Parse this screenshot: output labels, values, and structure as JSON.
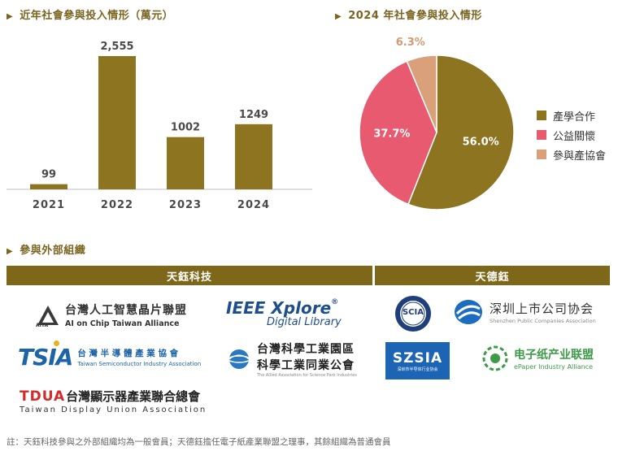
{
  "titles": {
    "bar": "近年社會參與投入情形（萬元）",
    "pie": "2024 年社會參與投入情形",
    "org": "參與外部組織"
  },
  "chart_data": [
    {
      "type": "bar",
      "title": "近年社會參與投入情形（萬元）",
      "categories": [
        "2021",
        "2022",
        "2023",
        "2024"
      ],
      "values": [
        99,
        2555,
        1002,
        1249
      ],
      "value_labels": [
        "99",
        "2,555",
        "1002",
        "1249"
      ],
      "ylim": [
        0,
        2700
      ],
      "xlabel": "",
      "ylabel": "",
      "color": "#8c7420"
    },
    {
      "type": "pie",
      "title": "2024 年社會參與投入情形",
      "labels": [
        "產學合作",
        "公益關懷",
        "參與產協會"
      ],
      "values": [
        56.0,
        37.7,
        6.3
      ],
      "value_labels": [
        "56.0%",
        "37.7%",
        "6.3%"
      ],
      "colors": [
        "#8c7420",
        "#e85a70",
        "#d9a07a"
      ],
      "legend": "right"
    }
  ],
  "orgs": {
    "left_header": "天鈺科技",
    "right_header": "天德鈺",
    "aita": {
      "mark": "AITA",
      "name": "台灣人工智慧晶片聯盟",
      "sub": "AI on Chip Taiwan Alliance"
    },
    "ieee": {
      "name": "IEEE Xplore",
      "reg": "®",
      "sub": "Digital Library"
    },
    "tsia": {
      "mark": "TSIA",
      "name": "台 灣 半 導 體 產 業 協 會",
      "sub": "Taiwan Semiconductor Industry Association"
    },
    "sipa": {
      "name1": "台灣科學工業園區",
      "name2": "科學工業同業公會",
      "sub": "The Allied Association for Science Park Industries"
    },
    "tdua": {
      "mark": "TDUA",
      "name": "台灣顯示器產業聯合總會",
      "sub": "Taiwan Display Union Association"
    },
    "scia": {
      "mark": "SCIA"
    },
    "szpca": {
      "name": "深圳上市公司协会",
      "sub": "Shenzhen Public Companies Association"
    },
    "szsia": {
      "mark": "SZSIA",
      "sub": "深圳市半导体行业协会"
    },
    "epaper": {
      "name": "电子纸产业联盟",
      "sub": "ePaper Industry Alliance"
    }
  },
  "note": "註：天鈺科技參與之外部組織均為一般會員；天德鈺擔任電子紙產業聯盟之理事，其餘組織為普通會員"
}
